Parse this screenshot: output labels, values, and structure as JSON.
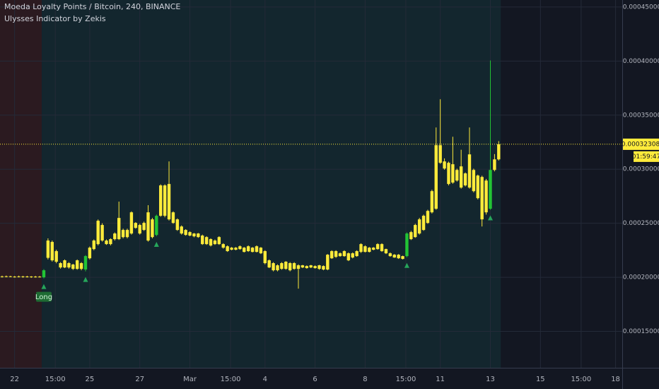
{
  "chart_data": {
    "type": "candlestick",
    "title": "Moeda Loyalty Points / Bitcoin, 240, BINANCE",
    "subtitle": "Ulysses Indicator by Zekis",
    "color": "#ffeb3b",
    "signal_color": "#22c435",
    "arrow_color": "#26a65b",
    "grid": true,
    "xlim": [
      -0.5,
      148.6
    ],
    "ylim": [
      0.0001163,
      0.0004565
    ],
    "yticks": [
      {
        "value": 0.00045,
        "label": "0.00045000"
      },
      {
        "value": 0.0004,
        "label": "0.00040000"
      },
      {
        "value": 0.00035,
        "label": "0.00035000"
      },
      {
        "value": 0.0003,
        "label": "0.00030000"
      },
      {
        "value": 0.00025,
        "label": "0.00025000"
      },
      {
        "value": 0.0002,
        "label": "0.00020000"
      },
      {
        "value": 0.00015,
        "label": "0.00015000"
      }
    ],
    "xticks": [
      {
        "value": 3,
        "label": "22"
      },
      {
        "value": 12.75,
        "label": "15:00"
      },
      {
        "value": 21,
        "label": "25"
      },
      {
        "value": 33,
        "label": "27"
      },
      {
        "value": 45,
        "label": "Mar"
      },
      {
        "value": 54.75,
        "label": "15:00"
      },
      {
        "value": 63,
        "label": "4"
      },
      {
        "value": 75,
        "label": "6"
      },
      {
        "value": 87,
        "label": "8"
      },
      {
        "value": 96.75,
        "label": "15:00"
      },
      {
        "value": 105,
        "label": "11"
      },
      {
        "value": 117,
        "label": "13"
      },
      {
        "value": 129,
        "label": "15"
      },
      {
        "value": 138.75,
        "label": "15:00"
      },
      {
        "value": 147,
        "label": "18"
      }
    ],
    "zones": [
      {
        "from": -0.5,
        "to": 9.5,
        "color": "#2b1a20"
      },
      {
        "from": 9.5,
        "to": 119.5,
        "color": "#13262e"
      }
    ],
    "open": [
      0.0002008,
      0.0002005,
      0.0002009,
      0.0002006,
      0.0002004,
      0.0002008,
      0.0002003,
      0.0002007,
      0.0002002,
      0.0002006,
      0.0002,
      0.000218,
      0.0002327,
      0.0002242,
      0.0002131,
      0.0002091,
      0.0002131,
      0.0002118,
      0.0002078,
      0.0002131,
      0.0002072,
      0.0002176,
      0.0002261,
      0.0002307,
      0.0002484,
      0.000234,
      0.0002307,
      0.0002353,
      0.0002353,
      0.0002438,
      0.0002372,
      0.0002405,
      0.0002503,
      0.0002484,
      0.0002438,
      0.0002601,
      0.0002536,
      0.0002392,
      0.0002569,
      0.000285,
      0.0002536,
      0.0002601,
      0.0002536,
      0.000247,
      0.0002438,
      0.0002418,
      0.0002405,
      0.0002405,
      0.0002386,
      0.0002372,
      0.0002353,
      0.000234,
      0.0002372,
      0.0002307,
      0.0002287,
      0.0002274,
      0.0002255,
      0.0002287,
      0.0002274,
      0.0002287,
      0.0002235,
      0.0002287,
      0.0002274,
      0.0002242,
      0.0002157,
      0.0002131,
      0.0002111,
      0.0002078,
      0.0002144,
      0.0002065,
      0.0002131,
      0.0002078,
      0.0002111,
      0.0002104,
      0.0002091,
      0.0002085,
      0.0002078,
      0.0002104,
      0.0002072,
      0.0002176,
      0.0002242,
      0.0002196,
      0.0002196,
      0.0002222,
      0.0002183,
      0.0002196,
      0.0002235,
      0.0002287,
      0.0002235,
      0.0002274,
      0.0002261,
      0.0002307,
      0.0002261,
      0.0002222,
      0.0002209,
      0.0002209,
      0.0002196,
      0.0002196,
      0.0002353,
      0.0002372,
      0.0002405,
      0.0002569,
      0.0002503,
      0.0002601,
      0.0002634,
      0.0003222,
      0.0003072,
      0.0003059,
      0.0002876,
      0.0002993,
      0.000283,
      0.0002961,
      0.000283,
      0.0002993,
      0.0002941,
      0.0002928,
      0.0002601,
      0.0002634,
      0.0002993,
      0.0003091
    ],
    "high": [
      0.0002015,
      0.0002016,
      0.0002014,
      0.0002012,
      0.0002015,
      0.0002013,
      0.0002014,
      0.0002011,
      0.0002013,
      0.0002012,
      0.0002075,
      0.000236,
      0.000234,
      0.0002255,
      0.000214,
      0.0002165,
      0.000214,
      0.0002125,
      0.0002165,
      0.000214,
      0.0002205,
      0.0002285,
      0.000235,
      0.0002535,
      0.00025,
      0.000235,
      0.000236,
      0.0002415,
      0.00027,
      0.000245,
      0.000245,
      0.000261,
      0.000251,
      0.0002495,
      0.0002515,
      0.0002667,
      0.000255,
      0.000258,
      0.000286,
      0.000286,
      0.0003072,
      0.000261,
      0.0002545,
      0.000248,
      0.0002445,
      0.0002425,
      0.000241,
      0.000241,
      0.0002395,
      0.000238,
      0.000236,
      0.000235,
      0.000238,
      0.0002315,
      0.0002295,
      0.000228,
      0.000228,
      0.0002295,
      0.000228,
      0.0002295,
      0.000228,
      0.0002295,
      0.000228,
      0.000225,
      0.0002165,
      0.000214,
      0.000212,
      0.000214,
      0.000215,
      0.000214,
      0.000214,
      0.000212,
      0.0002115,
      0.000211,
      0.0002115,
      0.000211,
      0.0002115,
      0.000211,
      0.0002215,
      0.000225,
      0.000225,
      0.000223,
      0.000225,
      0.000223,
      0.000223,
      0.000225,
      0.0002315,
      0.0002295,
      0.000228,
      0.000228,
      0.0002315,
      0.0002315,
      0.0002265,
      0.000223,
      0.0002215,
      0.0002215,
      0.00022,
      0.0002415,
      0.000243,
      0.0002495,
      0.000255,
      0.000258,
      0.0002625,
      0.000281,
      0.0003386,
      0.0003647,
      0.00031,
      0.000307,
      0.00033,
      0.0003005,
      0.000318,
      0.000297,
      0.0003386,
      0.0003005,
      0.000295,
      0.000294,
      0.000291,
      0.0004006,
      0.000314,
      0.000326
    ],
    "low": [
      0.0001998,
      0.0002,
      0.0002001,
      0.0001997,
      0.0001999,
      0.0001996,
      0.0001998,
      0.0001995,
      0.0001997,
      0.0001998,
      0.000199,
      0.0002165,
      0.0002145,
      0.000213,
      0.000208,
      0.0002085,
      0.000208,
      0.0002068,
      0.000207,
      0.0002065,
      0.0002055,
      0.0002165,
      0.000225,
      0.0002295,
      0.000233,
      0.00023,
      0.0002295,
      0.000234,
      0.0002345,
      0.000236,
      0.000236,
      0.0002395,
      0.000245,
      0.0002395,
      0.000243,
      0.000233,
      0.000236,
      0.000238,
      0.000256,
      0.0002555,
      0.0002525,
      0.0002495,
      0.000243,
      0.0002395,
      0.0002385,
      0.000238,
      0.000237,
      0.0002365,
      0.00023,
      0.00023,
      0.0002285,
      0.00023,
      0.00023,
      0.0002265,
      0.0002235,
      0.000225,
      0.000225,
      0.0002255,
      0.000223,
      0.0002235,
      0.000223,
      0.000223,
      0.0002215,
      0.000212,
      0.0002085,
      0.0002055,
      0.0002055,
      0.000207,
      0.000207,
      0.0002055,
      0.000207,
      0.0001895,
      0.0002085,
      0.000208,
      0.0002085,
      0.000208,
      0.000207,
      0.0002065,
      0.0002065,
      0.000217,
      0.000218,
      0.000219,
      0.000219,
      0.000215,
      0.0002175,
      0.000219,
      0.0002225,
      0.000223,
      0.000223,
      0.000225,
      0.0002255,
      0.0002235,
      0.0002215,
      0.000219,
      0.000218,
      0.000217,
      0.0002165,
      0.0002185,
      0.0002345,
      0.0002365,
      0.0002395,
      0.000243,
      0.0002495,
      0.000259,
      0.0002625,
      0.000305,
      0.0002995,
      0.000285,
      0.0002865,
      0.0002885,
      0.000282,
      0.000284,
      0.000282,
      0.0002785,
      0.000272,
      0.000247,
      0.000258,
      0.0002625,
      0.000298,
      0.000308
    ],
    "close": [
      0.0002005,
      0.0002009,
      0.0002006,
      0.0002004,
      0.0002008,
      0.0002003,
      0.0002007,
      0.0002002,
      0.0002006,
      0.0002004,
      0.0002065,
      0.000234,
      0.0002157,
      0.0002144,
      0.0002091,
      0.0002157,
      0.0002091,
      0.0002078,
      0.0002157,
      0.0002078,
      0.0002196,
      0.0002274,
      0.000234,
      0.0002523,
      0.000234,
      0.0002307,
      0.0002353,
      0.0002405,
      0.0002549,
      0.0002372,
      0.0002438,
      0.0002601,
      0.0002457,
      0.0002405,
      0.0002503,
      0.000234,
      0.0002372,
      0.0002569,
      0.000285,
      0.0002569,
      0.0002863,
      0.0002503,
      0.0002438,
      0.0002405,
      0.0002392,
      0.0002386,
      0.0002379,
      0.0002372,
      0.0002307,
      0.0002307,
      0.0002294,
      0.0002307,
      0.0002307,
      0.0002274,
      0.0002242,
      0.0002255,
      0.0002274,
      0.0002261,
      0.0002235,
      0.0002242,
      0.0002274,
      0.0002235,
      0.0002222,
      0.0002131,
      0.0002091,
      0.0002065,
      0.0002065,
      0.0002131,
      0.0002078,
      0.0002131,
      0.0002078,
      0.0002111,
      0.0002091,
      0.0002085,
      0.0002111,
      0.0002104,
      0.0002111,
      0.0002072,
      0.0002209,
      0.0002242,
      0.0002189,
      0.0002222,
      0.0002242,
      0.0002157,
      0.0002222,
      0.0002242,
      0.0002307,
      0.0002235,
      0.0002274,
      0.0002255,
      0.0002307,
      0.0002242,
      0.0002222,
      0.0002196,
      0.0002183,
      0.0002176,
      0.000217,
      0.0002405,
      0.0002418,
      0.0002484,
      0.0002536,
      0.0002438,
      0.0002614,
      0.0002797,
      0.0003222,
      0.0003059,
      0.0003006,
      0.0002863,
      0.0003046,
      0.0002895,
      0.0003026,
      0.000285,
      0.0003137,
      0.0002797,
      0.0002732,
      0.0002536,
      0.0002895,
      0.0002993,
      0.0003091,
      0.00032308
    ],
    "signals": [
      {
        "x": 10,
        "label": "Long"
      },
      {
        "x": 20
      },
      {
        "x": 37
      },
      {
        "x": 97
      },
      {
        "x": 117
      }
    ],
    "last_price": {
      "value": 0.00032308,
      "label": "0.00032308"
    },
    "countdown": "01:59:47"
  }
}
